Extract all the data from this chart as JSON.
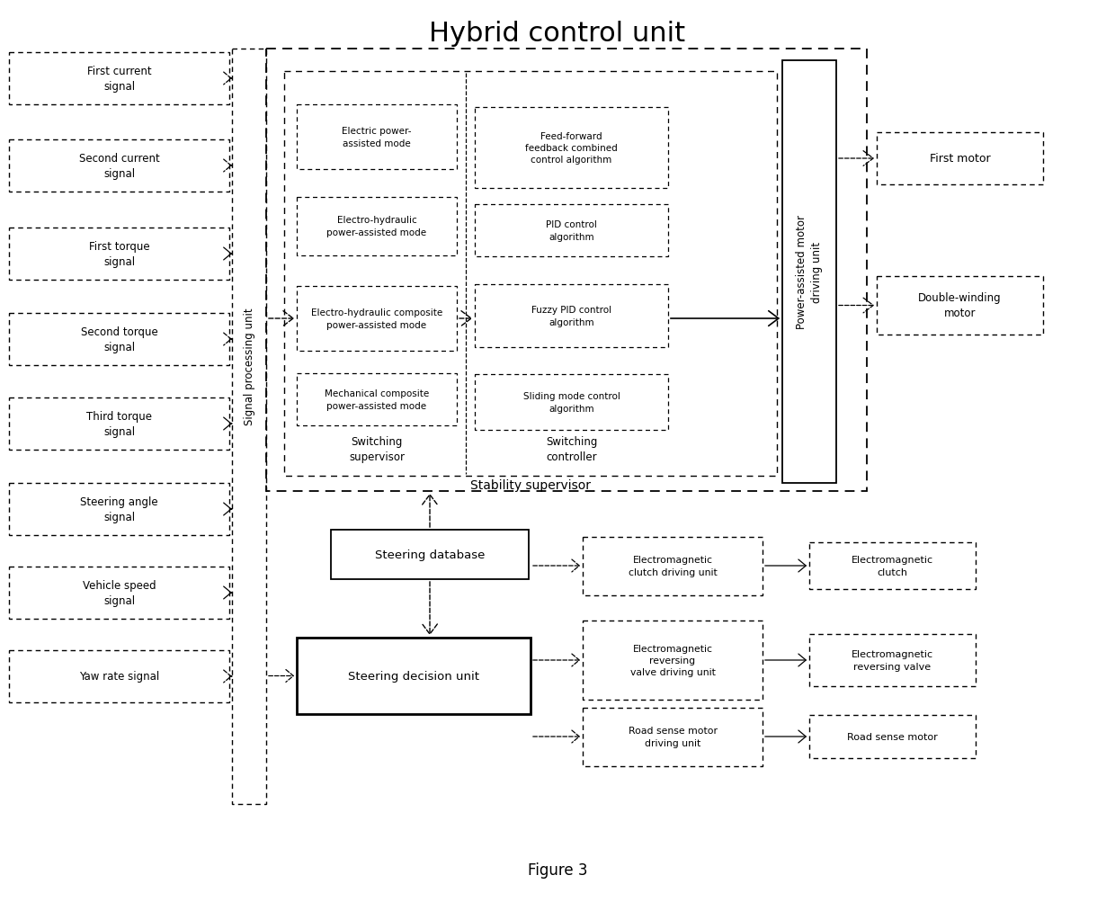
{
  "title": "Hybrid control unit",
  "figure_caption": "Figure 3",
  "bg": "#ffffff",
  "fg": "#000000",
  "input_signals": [
    "First current\nsignal",
    "Second current\nsignal",
    "First torque\nsignal",
    "Second torque\nsignal",
    "Third torque\nsignal",
    "Steering angle\nsignal",
    "Vehicle speed\nsignal",
    "Yaw rate signal"
  ],
  "input_arrow_dashed": [
    true,
    true,
    false,
    true,
    false,
    false,
    false,
    true
  ],
  "mode_boxes": [
    "Electric power-\nassisted mode",
    "Electro-hydraulic\npower-assisted mode",
    "Electro-hydraulic composite\npower-assisted mode",
    "Mechanical composite\npower-assisted mode"
  ],
  "algorithm_boxes": [
    "Feed-forward\nfeedback combined\ncontrol algorithm",
    "PID control\nalgorithm",
    "Fuzzy PID control\nalgorithm",
    "Sliding mode control\nalgorithm"
  ],
  "switching_supervisor": "Switching\nsupervisor",
  "switching_controller": "Switching\ncontroller",
  "stability_supervisor": "Stability supervisor",
  "signal_processing": "Signal processing unit",
  "power_assisted": "Power-assisted motor\ndriving unit",
  "motor_boxes": [
    "First motor",
    "Double-winding\nmotor"
  ],
  "steering_database": "Steering database",
  "steering_decision": "Steering decision unit",
  "bottom_right_boxes": [
    "Electromagnetic\nclutch driving unit",
    "Electromagnetic\nreversing\nvalve driving unit",
    "Road sense motor\ndriving unit"
  ],
  "far_right_boxes": [
    "Electromagnetic\nclutch",
    "Electromagnetic\nreversing valve",
    "Road sense motor"
  ]
}
